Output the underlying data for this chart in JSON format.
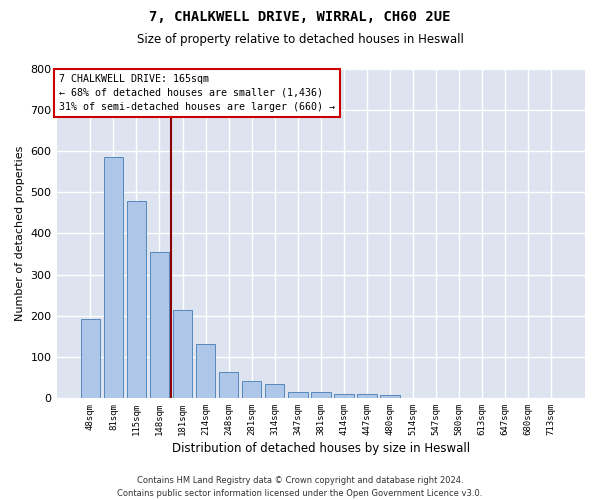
{
  "title_line1": "7, CHALKWELL DRIVE, WIRRAL, CH60 2UE",
  "title_line2": "Size of property relative to detached houses in Heswall",
  "xlabel": "Distribution of detached houses by size in Heswall",
  "ylabel": "Number of detached properties",
  "categories": [
    "48sqm",
    "81sqm",
    "115sqm",
    "148sqm",
    "181sqm",
    "214sqm",
    "248sqm",
    "281sqm",
    "314sqm",
    "347sqm",
    "381sqm",
    "414sqm",
    "447sqm",
    "480sqm",
    "514sqm",
    "547sqm",
    "580sqm",
    "613sqm",
    "647sqm",
    "680sqm",
    "713sqm"
  ],
  "values": [
    192,
    587,
    480,
    354,
    214,
    130,
    62,
    40,
    33,
    15,
    15,
    10,
    10,
    8,
    0,
    0,
    0,
    0,
    0,
    0,
    0
  ],
  "bar_color": "#aec6e8",
  "bar_edge_color": "#5588bb",
  "background_color": "#dde4f0",
  "grid_color": "#ffffff",
  "annotation_title": "7 CHALKWELL DRIVE: 165sqm",
  "annotation_line2": "← 68% of detached houses are smaller (1,436)",
  "annotation_line3": "31% of semi-detached houses are larger (660) →",
  "footer_line1": "Contains HM Land Registry data © Crown copyright and database right 2024.",
  "footer_line2": "Contains public sector information licensed under the Open Government Licence v3.0.",
  "ylim": [
    0,
    800
  ],
  "yticks": [
    0,
    100,
    200,
    300,
    400,
    500,
    600,
    700,
    800
  ],
  "red_line_x": 3.5
}
